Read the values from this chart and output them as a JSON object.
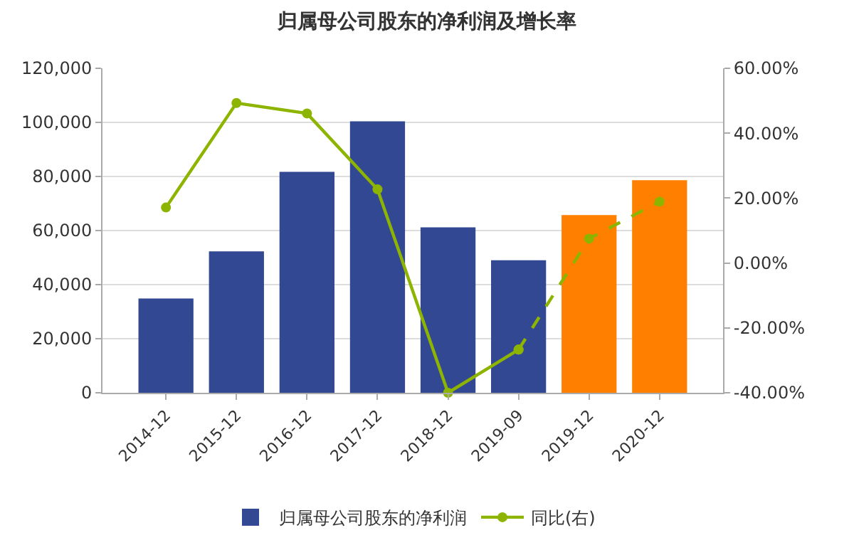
{
  "chart_data": {
    "type": "bar",
    "title": "归属母公司股东的净利润及增长率",
    "categories": [
      "2014-12",
      "2015-12",
      "2016-12",
      "2017-12",
      "2018-12",
      "2019-09",
      "2019-12",
      "2020-12"
    ],
    "series": [
      {
        "name": "归属母公司股东的净利润",
        "color": "#334893",
        "colors": [
          "#334893",
          "#334893",
          "#334893",
          "#334893",
          "#334893",
          "#334893",
          "#ff7f00",
          "#ff7f00"
        ],
        "values": [
          34900,
          52300,
          81700,
          100400,
          61200,
          49000,
          65700,
          78600
        ]
      },
      {
        "name": "同比(右)",
        "type": "line",
        "axis": "y2",
        "color": "#8cb400",
        "marker": "circle",
        "line_style": "solid",
        "values": [
          17.1,
          49.3,
          46.1,
          22.7,
          -40.0,
          -26.7,
          null,
          null
        ]
      },
      {
        "type": "line",
        "axis": "y2",
        "color": "#8cb400",
        "marker": "circle",
        "line_style": "dashed",
        "values": [
          null,
          null,
          null,
          null,
          null,
          -26.7,
          7.5,
          18.9
        ]
      }
    ],
    "ylim": [
      0,
      120000
    ],
    "yticks": [
      {
        "value": 0,
        "label": "0"
      },
      {
        "value": 20000,
        "label": "20,000"
      },
      {
        "value": 40000,
        "label": "40,000"
      },
      {
        "value": 60000,
        "label": "60,000"
      },
      {
        "value": 80000,
        "label": "80,000"
      },
      {
        "value": 100000,
        "label": "100,000"
      },
      {
        "value": 120000,
        "label": "120,000"
      }
    ],
    "y2lim": [
      -40,
      60
    ],
    "y2ticks": [
      {
        "value": -40,
        "label": "-40.00%"
      },
      {
        "value": -20,
        "label": "-20.00%"
      },
      {
        "value": 0,
        "label": "0.00%"
      },
      {
        "value": 20,
        "label": "20.00%"
      },
      {
        "value": 40,
        "label": "40.00%"
      },
      {
        "value": 60,
        "label": "60.00%"
      }
    ],
    "grid": "y",
    "legend": "bottom"
  }
}
